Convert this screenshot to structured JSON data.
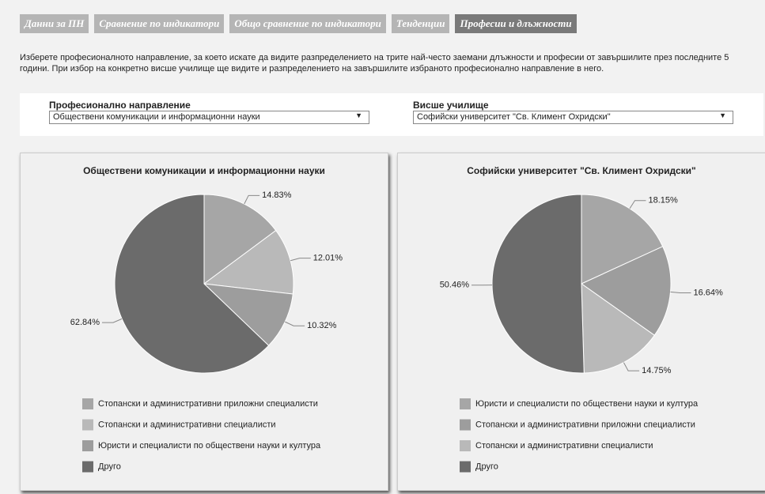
{
  "tabs": [
    {
      "label": "Данни за ПН",
      "active": false
    },
    {
      "label": "Сравнение по индикатори",
      "active": false
    },
    {
      "label": "Общо сравнение по индикатори",
      "active": false
    },
    {
      "label": "Тенденции",
      "active": false
    },
    {
      "label": "Професии и длъжности",
      "active": true
    }
  ],
  "description": "Изберете професионалното направление, за което искате да видите разпределението на трите най-често заемани длъжности и професии от завършилите през последните 5 години. При избор на конкретно висше училище ще видите и разпределението на завършилите избраното професионално направление в него.",
  "filters": [
    {
      "label": "Професионално направление",
      "value": "Обществени комуникации и информационни науки"
    },
    {
      "label": "Висше училище",
      "value": "Софийски университет \"Св. Климент Охридски\""
    }
  ],
  "chart_data": [
    {
      "type": "pie",
      "title": "Обществени комуникации и информационни науки",
      "categories": [
        "Стопански и административни приложни специалисти",
        "Стопански и административни специалисти",
        "Юристи и специалисти по обществени науки и култура",
        "Друго"
      ],
      "values": [
        14.83,
        12.01,
        10.32,
        62.84
      ],
      "value_labels": [
        "14.83%",
        "12.01%",
        "10.32%",
        "62.84%"
      ],
      "colors": [
        "#a6a6a6",
        "#b9b9b9",
        "#9d9d9d",
        "#6b6b6b"
      ]
    },
    {
      "type": "pie",
      "title": "Софийски университет \"Св. Климент Охридски\"",
      "categories": [
        "Юристи и специалисти по обществени науки и култура",
        "Стопански и административни приложни специалисти",
        "Стопански и административни специалисти",
        "Друго"
      ],
      "values": [
        18.15,
        16.64,
        14.75,
        50.46
      ],
      "value_labels": [
        "18.15%",
        "16.64%",
        "14.75%",
        "50.46%"
      ],
      "colors": [
        "#a6a6a6",
        "#9d9d9d",
        "#b9b9b9",
        "#6b6b6b"
      ]
    }
  ]
}
